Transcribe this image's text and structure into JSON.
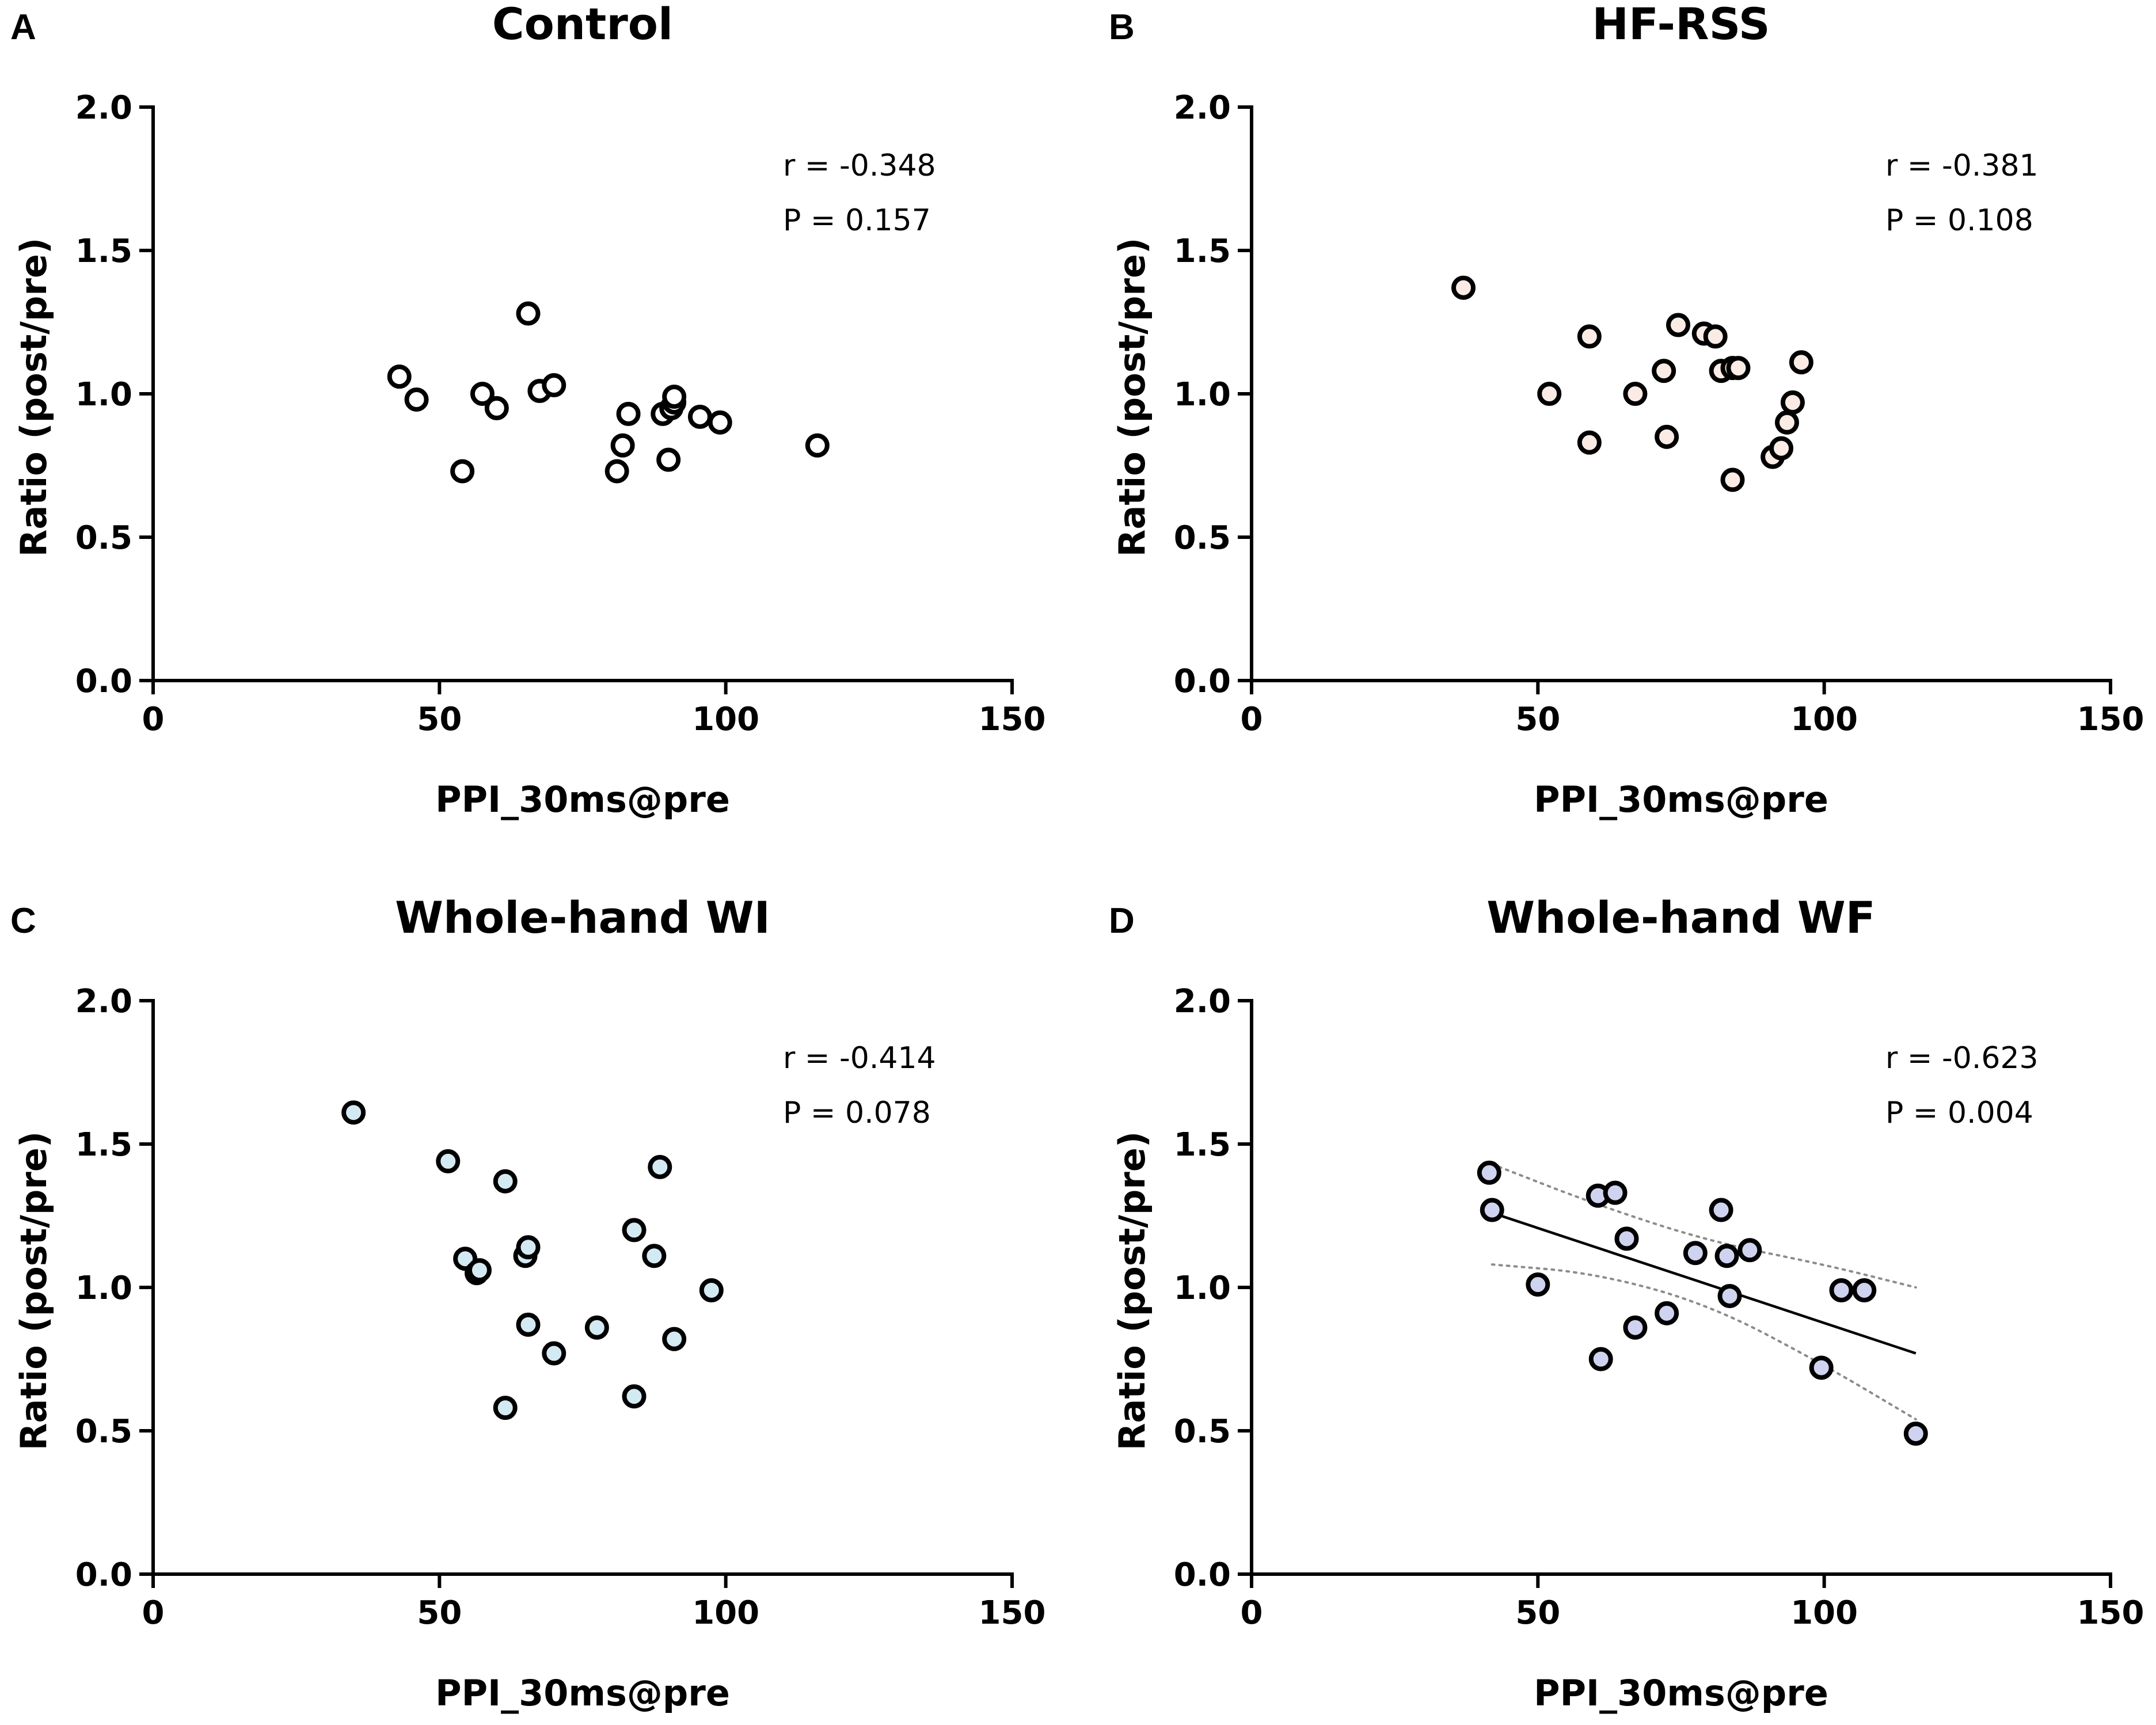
{
  "figure": {
    "colors": {
      "axis": "#000000",
      "ci_band": "#8c8c8c"
    }
  },
  "chart_data": [
    {
      "type": "scatter",
      "panel_label": "A",
      "title": "Control",
      "xlabel": "PPI_30ms@pre",
      "ylabel": "Ratio (post/pre)",
      "xlim": [
        0,
        150
      ],
      "ylim": [
        0.0,
        2.0
      ],
      "xticks": [
        0,
        50,
        100,
        150
      ],
      "yticks": [
        0.0,
        0.5,
        1.0,
        1.5,
        2.0
      ],
      "xtick_labels": [
        "0",
        "50",
        "100",
        "150"
      ],
      "ytick_labels": [
        "0.0",
        "0.5",
        "1.0",
        "1.5",
        "2.0"
      ],
      "marker_fill": "#ffffff",
      "stats": {
        "r": "r = -0.348",
        "p": "P = 0.157"
      },
      "x": [
        43,
        46,
        54,
        57.5,
        60,
        65.5,
        67.5,
        70,
        81,
        82,
        83,
        89,
        90,
        90.5,
        91,
        91,
        95.5,
        99,
        116
      ],
      "y": [
        1.06,
        0.98,
        0.73,
        1.0,
        0.95,
        1.28,
        1.01,
        1.03,
        0.73,
        0.82,
        0.93,
        0.93,
        0.77,
        0.95,
        0.97,
        0.99,
        0.92,
        0.9,
        0.82
      ]
    },
    {
      "type": "scatter",
      "panel_label": "B",
      "title": "HF-RSS",
      "xlabel": "PPI_30ms@pre",
      "ylabel": "Ratio (post/pre)",
      "xlim": [
        0,
        150
      ],
      "ylim": [
        0.0,
        2.0
      ],
      "xticks": [
        0,
        50,
        100,
        150
      ],
      "yticks": [
        0.0,
        0.5,
        1.0,
        1.5,
        2.0
      ],
      "xtick_labels": [
        "0",
        "50",
        "100",
        "150"
      ],
      "ytick_labels": [
        "0.0",
        "0.5",
        "1.0",
        "1.5",
        "2.0"
      ],
      "marker_fill": "#fbebe5",
      "stats": {
        "r": "r = -0.381",
        "p": "P = 0.108"
      },
      "x": [
        37,
        52,
        59,
        59,
        67,
        72,
        72.5,
        74.5,
        79,
        81,
        82,
        84,
        84,
        85,
        91,
        92.5,
        93.5,
        94.5,
        96
      ],
      "y": [
        1.37,
        1.0,
        1.2,
        0.83,
        1.0,
        1.08,
        0.85,
        1.24,
        1.21,
        1.2,
        1.08,
        1.09,
        0.7,
        1.09,
        0.78,
        0.81,
        0.9,
        0.97,
        1.11
      ]
    },
    {
      "type": "scatter",
      "panel_label": "C",
      "title": "Whole-hand WI",
      "xlabel": "PPI_30ms@pre",
      "ylabel": "Ratio (post/pre)",
      "xlim": [
        0,
        150
      ],
      "ylim": [
        0.0,
        2.0
      ],
      "xticks": [
        0,
        50,
        100,
        150
      ],
      "yticks": [
        0.0,
        0.5,
        1.0,
        1.5,
        2.0
      ],
      "xtick_labels": [
        "0",
        "50",
        "100",
        "150"
      ],
      "ytick_labels": [
        "0.0",
        "0.5",
        "1.0",
        "1.5",
        "2.0"
      ],
      "marker_fill": "#d3eaf3",
      "stats": {
        "r": "r = -0.414",
        "p": "P = 0.078"
      },
      "x": [
        35,
        51.5,
        54.5,
        56.5,
        57,
        61.5,
        61.5,
        65,
        65.5,
        65.5,
        70,
        77.5,
        84,
        84,
        87.5,
        88.5,
        91,
        97.5
      ],
      "y": [
        1.61,
        1.44,
        1.1,
        1.05,
        1.06,
        1.37,
        0.58,
        1.11,
        1.14,
        0.87,
        0.77,
        0.86,
        1.2,
        0.62,
        1.11,
        1.42,
        0.82,
        0.99
      ]
    },
    {
      "type": "scatter",
      "panel_label": "D",
      "title": "Whole-hand WF",
      "xlabel": "PPI_30ms@pre",
      "ylabel": "Ratio (post/pre)",
      "xlim": [
        0,
        150
      ],
      "ylim": [
        0.0,
        2.0
      ],
      "xticks": [
        0,
        50,
        100,
        150
      ],
      "yticks": [
        0.0,
        0.5,
        1.0,
        1.5,
        2.0
      ],
      "xtick_labels": [
        "0",
        "50",
        "100",
        "150"
      ],
      "ytick_labels": [
        "0.0",
        "0.5",
        "1.0",
        "1.5",
        "2.0"
      ],
      "marker_fill": "#cfd3ef",
      "stats": {
        "r": "r = -0.623",
        "p": "P = 0.004"
      },
      "x": [
        41.5,
        42,
        50,
        60.5,
        61,
        63.5,
        65.5,
        67,
        72.5,
        77.5,
        82,
        83,
        83.5,
        87,
        99.5,
        103,
        107,
        116
      ],
      "y": [
        1.4,
        1.27,
        1.01,
        1.32,
        0.75,
        1.33,
        1.17,
        0.86,
        0.91,
        1.12,
        1.27,
        1.11,
        0.97,
        1.13,
        0.72,
        0.99,
        0.99,
        0.49
      ],
      "regression": {
        "x_range": [
          42,
          116
        ],
        "y_at_range": [
          1.26,
          0.77
        ]
      },
      "ci_band": {
        "upper": {
          "x": [
            42,
            60,
            80,
            100,
            116
          ],
          "y": [
            1.43,
            1.29,
            1.16,
            1.08,
            1.0
          ]
        },
        "lower": {
          "x": [
            42,
            60,
            80,
            100,
            116
          ],
          "y": [
            1.08,
            1.05,
            0.94,
            0.73,
            0.54
          ]
        }
      }
    }
  ]
}
